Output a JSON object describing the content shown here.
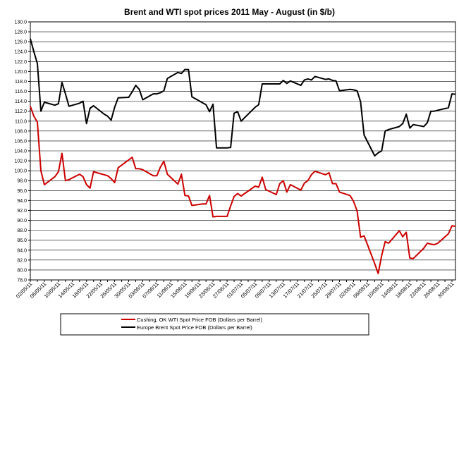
{
  "chart_data": {
    "type": "line",
    "title": "Brent and WTI spot prices 2011 May - August (in $/b)",
    "xlabel": "",
    "ylabel": "",
    "ylim": [
      78.0,
      130.0
    ],
    "ytick_step": 2.0,
    "yticks": [
      "78.0",
      "80.0",
      "82.0",
      "84.0",
      "86.0",
      "88.0",
      "90.0",
      "92.0",
      "94.0",
      "96.0",
      "98.0",
      "100.0",
      "102.0",
      "104.0",
      "106.0",
      "108.0",
      "110.0",
      "112.0",
      "114.0",
      "116.0",
      "118.0",
      "120.0",
      "122.0",
      "124.0",
      "126.0",
      "128.0",
      "130.0"
    ],
    "x_tick_labels": [
      "02/05/11",
      "06/05/11",
      "10/05/11",
      "14/05/11",
      "18/05/11",
      "22/05/11",
      "26/05/11",
      "30/05/11",
      "03/06/11",
      "07/06/11",
      "11/06/11",
      "15/06/11",
      "19/06/11",
      "23/06/11",
      "27/06/11",
      "01/07/11",
      "05/07/11",
      "09/07/11",
      "13/07/11",
      "17/07/11",
      "21/07/11",
      "25/07/11",
      "29/07/11",
      "02/08/11",
      "06/08/11",
      "10/08/11",
      "14/08/11",
      "18/08/11",
      "22/08/11",
      "26/08/11",
      "30/08/11"
    ],
    "x_start": "2011-05-02",
    "x_end": "2011-08-31",
    "legend_position": "bottom",
    "grid": "horizontal",
    "series": [
      {
        "name": "Cushing, OK WTI Spot Price FOB (Dollars per Barrel)",
        "color": "#cc0000",
        "points": [
          [
            "2011-05-02",
            113.0
          ],
          [
            "2011-05-03",
            111.0
          ],
          [
            "2011-05-04",
            109.8
          ],
          [
            "2011-05-05",
            100.0
          ],
          [
            "2011-05-06",
            97.2
          ],
          [
            "2011-05-09",
            98.8
          ],
          [
            "2011-05-10",
            99.8
          ],
          [
            "2011-05-11",
            103.5
          ],
          [
            "2011-05-12",
            98.0
          ],
          [
            "2011-05-13",
            98.2
          ],
          [
            "2011-05-16",
            99.3
          ],
          [
            "2011-05-17",
            98.8
          ],
          [
            "2011-05-18",
            97.2
          ],
          [
            "2011-05-19",
            96.5
          ],
          [
            "2011-05-20",
            99.8
          ],
          [
            "2011-05-23",
            99.2
          ],
          [
            "2011-05-24",
            99.0
          ],
          [
            "2011-05-25",
            98.4
          ],
          [
            "2011-05-26",
            97.6
          ],
          [
            "2011-05-27",
            100.6
          ],
          [
            "2011-05-31",
            102.7
          ],
          [
            "2011-06-01",
            100.4
          ],
          [
            "2011-06-02",
            100.4
          ],
          [
            "2011-06-03",
            100.2
          ],
          [
            "2011-06-06",
            99.0
          ],
          [
            "2011-06-07",
            99.0
          ],
          [
            "2011-06-08",
            100.7
          ],
          [
            "2011-06-09",
            101.9
          ],
          [
            "2011-06-10",
            99.3
          ],
          [
            "2011-06-13",
            97.3
          ],
          [
            "2011-06-14",
            99.3
          ],
          [
            "2011-06-15",
            95.0
          ],
          [
            "2011-06-16",
            94.9
          ],
          [
            "2011-06-17",
            93.0
          ],
          [
            "2011-06-20",
            93.3
          ],
          [
            "2011-06-21",
            93.3
          ],
          [
            "2011-06-22",
            95.0
          ],
          [
            "2011-06-23",
            90.7
          ],
          [
            "2011-06-24",
            90.8
          ],
          [
            "2011-06-27",
            90.8
          ],
          [
            "2011-06-28",
            92.9
          ],
          [
            "2011-06-29",
            94.8
          ],
          [
            "2011-06-30",
            95.4
          ],
          [
            "2011-07-01",
            94.9
          ],
          [
            "2011-07-05",
            96.9
          ],
          [
            "2011-07-06",
            96.7
          ],
          [
            "2011-07-07",
            98.7
          ],
          [
            "2011-07-08",
            96.2
          ],
          [
            "2011-07-11",
            95.2
          ],
          [
            "2011-07-12",
            97.4
          ],
          [
            "2011-07-13",
            98.0
          ],
          [
            "2011-07-14",
            95.7
          ],
          [
            "2011-07-15",
            97.2
          ],
          [
            "2011-07-18",
            96.1
          ],
          [
            "2011-07-19",
            97.5
          ],
          [
            "2011-07-20",
            98.0
          ],
          [
            "2011-07-21",
            99.2
          ],
          [
            "2011-07-22",
            99.9
          ],
          [
            "2011-07-25",
            99.2
          ],
          [
            "2011-07-26",
            99.6
          ],
          [
            "2011-07-27",
            97.4
          ],
          [
            "2011-07-28",
            97.4
          ],
          [
            "2011-07-29",
            95.7
          ],
          [
            "2011-08-01",
            95.0
          ],
          [
            "2011-08-02",
            93.8
          ],
          [
            "2011-08-03",
            91.9
          ],
          [
            "2011-08-04",
            86.6
          ],
          [
            "2011-08-05",
            86.9
          ],
          [
            "2011-08-08",
            81.3
          ],
          [
            "2011-08-09",
            79.3
          ],
          [
            "2011-08-10",
            82.9
          ],
          [
            "2011-08-11",
            85.7
          ],
          [
            "2011-08-12",
            85.4
          ],
          [
            "2011-08-15",
            87.9
          ],
          [
            "2011-08-16",
            86.7
          ],
          [
            "2011-08-17",
            87.6
          ],
          [
            "2011-08-18",
            82.4
          ],
          [
            "2011-08-19",
            82.3
          ],
          [
            "2011-08-22",
            84.4
          ],
          [
            "2011-08-23",
            85.4
          ],
          [
            "2011-08-24",
            85.2
          ],
          [
            "2011-08-25",
            85.1
          ],
          [
            "2011-08-26",
            85.4
          ],
          [
            "2011-08-29",
            87.3
          ],
          [
            "2011-08-30",
            88.9
          ],
          [
            "2011-08-31",
            88.8
          ]
        ]
      },
      {
        "name": "Europe Brent Spot Price FOB (Dollars per Barrel)",
        "color": "#000000",
        "points": [
          [
            "2011-05-02",
            126.6
          ],
          [
            "2011-05-03",
            124.0
          ],
          [
            "2011-05-04",
            121.6
          ],
          [
            "2011-05-05",
            112.0
          ],
          [
            "2011-05-06",
            113.8
          ],
          [
            "2011-05-09",
            113.2
          ],
          [
            "2011-05-10",
            113.5
          ],
          [
            "2011-05-11",
            117.8
          ],
          [
            "2011-05-12",
            115.5
          ],
          [
            "2011-05-13",
            113.0
          ],
          [
            "2011-05-16",
            113.6
          ],
          [
            "2011-05-17",
            114.0
          ],
          [
            "2011-05-18",
            109.5
          ],
          [
            "2011-05-19",
            112.6
          ],
          [
            "2011-05-20",
            113.1
          ],
          [
            "2011-05-23",
            111.4
          ],
          [
            "2011-05-24",
            111.0
          ],
          [
            "2011-05-25",
            110.2
          ],
          [
            "2011-05-26",
            112.8
          ],
          [
            "2011-05-27",
            114.7
          ],
          [
            "2011-05-30",
            114.8
          ],
          [
            "2011-05-31",
            115.9
          ],
          [
            "2011-06-01",
            117.2
          ],
          [
            "2011-06-02",
            116.4
          ],
          [
            "2011-06-03",
            114.3
          ],
          [
            "2011-06-06",
            115.5
          ],
          [
            "2011-06-07",
            115.5
          ],
          [
            "2011-06-08",
            115.7
          ],
          [
            "2011-06-09",
            116.1
          ],
          [
            "2011-06-10",
            118.6
          ],
          [
            "2011-06-13",
            119.8
          ],
          [
            "2011-06-14",
            119.6
          ],
          [
            "2011-06-15",
            120.4
          ],
          [
            "2011-06-16",
            120.4
          ],
          [
            "2011-06-17",
            114.9
          ],
          [
            "2011-06-20",
            113.7
          ],
          [
            "2011-06-21",
            113.3
          ],
          [
            "2011-06-22",
            111.9
          ],
          [
            "2011-06-23",
            113.4
          ],
          [
            "2011-06-24",
            104.6
          ],
          [
            "2011-06-27",
            104.6
          ],
          [
            "2011-06-28",
            104.7
          ],
          [
            "2011-06-29",
            111.6
          ],
          [
            "2011-06-30",
            111.9
          ],
          [
            "2011-07-01",
            110.0
          ],
          [
            "2011-07-05",
            112.8
          ],
          [
            "2011-07-06",
            113.3
          ],
          [
            "2011-07-07",
            117.5
          ],
          [
            "2011-07-08",
            117.5
          ],
          [
            "2011-07-11",
            117.5
          ],
          [
            "2011-07-12",
            117.5
          ],
          [
            "2011-07-13",
            118.2
          ],
          [
            "2011-07-14",
            117.6
          ],
          [
            "2011-07-15",
            118.1
          ],
          [
            "2011-07-18",
            117.2
          ],
          [
            "2011-07-19",
            118.3
          ],
          [
            "2011-07-20",
            118.5
          ],
          [
            "2011-07-21",
            118.3
          ],
          [
            "2011-07-22",
            119.0
          ],
          [
            "2011-07-25",
            118.4
          ],
          [
            "2011-07-26",
            118.5
          ],
          [
            "2011-07-27",
            118.2
          ],
          [
            "2011-07-28",
            118.1
          ],
          [
            "2011-07-29",
            116.1
          ],
          [
            "2011-08-01",
            116.4
          ],
          [
            "2011-08-02",
            116.3
          ],
          [
            "2011-08-03",
            116.1
          ],
          [
            "2011-08-04",
            113.9
          ],
          [
            "2011-08-05",
            107.2
          ],
          [
            "2011-08-08",
            103.0
          ],
          [
            "2011-08-09",
            103.6
          ],
          [
            "2011-08-10",
            104.0
          ],
          [
            "2011-08-11",
            108.0
          ],
          [
            "2011-08-12",
            108.3
          ],
          [
            "2011-08-15",
            108.9
          ],
          [
            "2011-08-16",
            109.5
          ],
          [
            "2011-08-17",
            111.4
          ],
          [
            "2011-08-18",
            108.6
          ],
          [
            "2011-08-19",
            109.3
          ],
          [
            "2011-08-22",
            108.9
          ],
          [
            "2011-08-23",
            109.7
          ],
          [
            "2011-08-24",
            112.0
          ],
          [
            "2011-08-25",
            112.0
          ],
          [
            "2011-08-26",
            112.2
          ],
          [
            "2011-08-29",
            112.7
          ],
          [
            "2011-08-30",
            115.5
          ],
          [
            "2011-08-31",
            115.4
          ]
        ]
      }
    ]
  }
}
